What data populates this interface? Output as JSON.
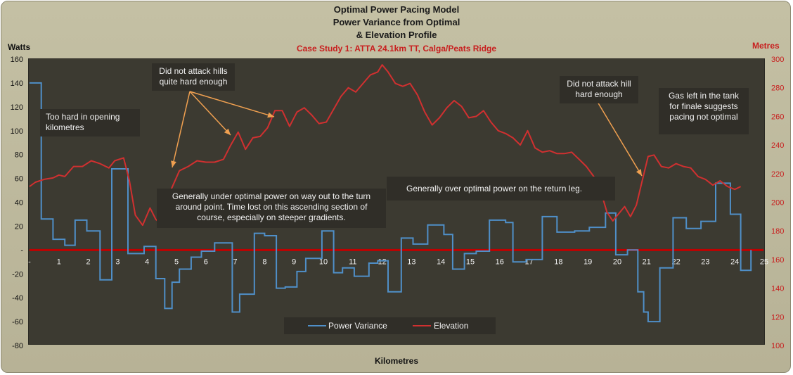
{
  "titles": {
    "line1": "Optimal Power Pacing Model",
    "line2": "Power Variance from Optimal",
    "line3": "& Elevation Profile",
    "line4": "Case Study 1: ATTA 24.1km TT, Calga/Peats Ridge"
  },
  "annotations": {
    "too_hard": "Too hard in opening kilometres",
    "did_not_attack_hills": "Did not attack hills quite hard enough",
    "generally_under": "Generally under optimal  power on way out to the turn around point. Time lost on this ascending section of course, especially on steeper gradients.",
    "generally_over": "Generally over optimal power on the return leg.",
    "did_not_attack_hill": "Did not attack hill hard enough",
    "gas_left": "Gas left in the tank for finale suggests pacing not optimal"
  },
  "colors": {
    "power": "#4f8fc8",
    "elevation": "#d03030",
    "zero_line": "#c00000",
    "arrow": "#f0a050"
  },
  "chart_data": {
    "type": "line",
    "xlabel": "Kilometres",
    "ylabel_left": "Watts",
    "ylabel_right": "Metres",
    "xlim": [
      0,
      25
    ],
    "ylim_left": [
      -80,
      160
    ],
    "ylim_right": [
      100,
      300
    ],
    "x_ticks": [
      "-",
      "1",
      "2",
      "3",
      "4",
      "5",
      "6",
      "7",
      "8",
      "9",
      "10",
      "11",
      "12",
      "13",
      "14",
      "15",
      "16",
      "17",
      "18",
      "19",
      "20",
      "21",
      "22",
      "23",
      "24",
      "25"
    ],
    "y_ticks_left": [
      "160",
      "140",
      "120",
      "100",
      "80",
      "60",
      "40",
      "20",
      "-",
      "-20",
      "-40",
      "-60",
      "-80"
    ],
    "y_ticks_right": [
      "300",
      "280",
      "260",
      "240",
      "220",
      "200",
      "180",
      "160",
      "140",
      "120",
      "100"
    ],
    "legend": [
      "Power Variance",
      "Elevation"
    ],
    "legend_position": "bottom-center",
    "series": [
      {
        "name": "Power Variance",
        "axis": "left",
        "style": "step",
        "x": [
          0,
          0.4,
          0.8,
          1.2,
          1.55,
          1.95,
          2.4,
          2.8,
          3.35,
          3.9,
          4.3,
          4.6,
          4.85,
          5.1,
          5.5,
          5.85,
          6.3,
          6.9,
          7.15,
          7.65,
          8.0,
          8.4,
          8.7,
          9.1,
          9.4,
          9.95,
          10.35,
          10.65,
          11.05,
          11.55,
          11.85,
          12.2,
          12.65,
          13.05,
          13.55,
          14.1,
          14.4,
          14.8,
          15.2,
          15.65,
          16.2,
          16.45,
          16.9,
          17.45,
          17.95,
          18.55,
          19.05,
          19.6,
          19.95,
          20.35,
          20.7,
          20.9,
          21.05,
          21.45,
          21.9,
          22.35,
          22.85,
          23.35,
          23.85,
          24.2
        ],
        "y": [
          140,
          26,
          9,
          4,
          25,
          16,
          -25,
          68,
          -3,
          3,
          -24,
          -49,
          -27,
          -16,
          -6,
          -1,
          6,
          -52,
          -37,
          14,
          12,
          -32,
          -31,
          -18,
          -7,
          16,
          -19,
          -15,
          -22,
          -11,
          -9,
          -35,
          10,
          5,
          21,
          13,
          -16,
          -3,
          -1,
          25,
          23,
          -10,
          -8,
          28,
          15,
          16,
          19,
          31,
          -4,
          0,
          -35,
          -52,
          -60,
          -15,
          27,
          18,
          24,
          56,
          30,
          -17
        ]
      },
      {
        "name": "Elevation",
        "axis": "right",
        "x": [
          0,
          0.2,
          0.5,
          0.8,
          1.0,
          1.2,
          1.5,
          1.8,
          2.1,
          2.4,
          2.7,
          2.9,
          3.2,
          3.4,
          3.6,
          3.85,
          4.1,
          4.3,
          4.55,
          4.8,
          5.1,
          5.4,
          5.7,
          6.0,
          6.3,
          6.6,
          6.85,
          7.1,
          7.35,
          7.6,
          7.85,
          8.1,
          8.35,
          8.6,
          8.85,
          9.1,
          9.35,
          9.6,
          9.85,
          10.1,
          10.35,
          10.6,
          10.85,
          11.1,
          11.35,
          11.6,
          11.85,
          12.0,
          12.2,
          12.45,
          12.7,
          12.95,
          13.2,
          13.45,
          13.7,
          13.95,
          14.2,
          14.45,
          14.7,
          14.95,
          15.2,
          15.45,
          15.7,
          15.95,
          16.2,
          16.45,
          16.7,
          16.95,
          17.2,
          17.45,
          17.7,
          17.95,
          18.2,
          18.45,
          18.7,
          18.95,
          19.2,
          19.45,
          19.65,
          19.85,
          20.05,
          20.25,
          20.45,
          20.65,
          20.85,
          21.05,
          21.25,
          21.5,
          21.75,
          22.0,
          22.25,
          22.5,
          22.75,
          23.0,
          23.25,
          23.5,
          23.75,
          24.0,
          24.2
        ],
        "y": [
          211,
          214,
          216,
          217,
          219,
          218,
          225,
          225,
          229,
          227,
          224,
          229,
          231,
          215,
          191,
          184,
          196,
          188,
          184,
          208,
          222,
          225,
          229,
          228,
          228,
          230,
          240,
          249,
          237,
          245,
          246,
          252,
          264,
          264,
          253,
          263,
          266,
          261,
          255,
          256,
          265,
          274,
          280,
          277,
          283,
          289,
          291,
          296,
          291,
          283,
          281,
          283,
          275,
          263,
          254,
          259,
          266,
          271,
          267,
          259,
          260,
          264,
          256,
          250,
          248,
          245,
          240,
          250,
          238,
          235,
          236,
          234,
          234,
          235,
          230,
          225,
          218,
          207,
          193,
          187,
          192,
          197,
          190,
          198,
          215,
          232,
          233,
          225,
          224,
          227,
          225,
          224,
          218,
          216,
          212,
          215,
          211,
          209,
          211
        ]
      }
    ]
  }
}
